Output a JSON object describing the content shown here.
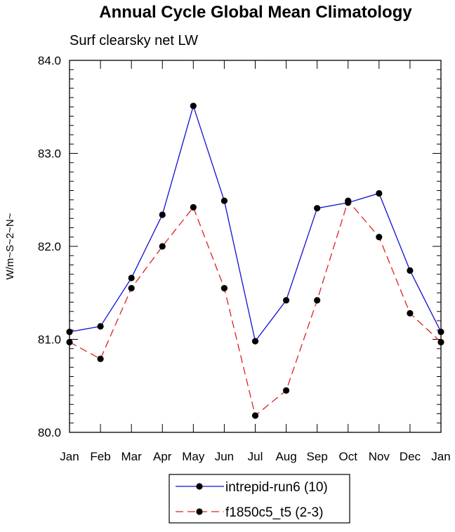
{
  "chart_data": {
    "type": "line",
    "title": "Annual Cycle Global Mean Climatology",
    "subtitle": "Surf clearsky net LW",
    "xlabel": "",
    "ylabel": "W/m~S~2~N~",
    "categories": [
      "Jan",
      "Feb",
      "Mar",
      "Apr",
      "May",
      "Jun",
      "Jul",
      "Aug",
      "Sep",
      "Oct",
      "Nov",
      "Dec",
      "Jan"
    ],
    "ylim": [
      80.0,
      84.0
    ],
    "yticks": [
      "80.0",
      "81.0",
      "82.0",
      "83.0",
      "84.0"
    ],
    "grid": false,
    "legend_position": "bottom-center",
    "series": [
      {
        "name": "intrepid-run6 (10)",
        "color": "#1010d0",
        "dash": "solid",
        "marker": "filled-circle",
        "values": [
          81.08,
          81.14,
          81.66,
          82.34,
          83.51,
          82.49,
          80.98,
          81.42,
          82.41,
          82.47,
          82.57,
          81.74,
          81.08
        ]
      },
      {
        "name": "f1850c5_t5 (2-3)",
        "color": "#e02020",
        "dash": "dashed",
        "marker": "filled-circle",
        "values": [
          80.97,
          80.79,
          81.55,
          82.0,
          82.42,
          81.55,
          80.18,
          80.45,
          81.42,
          82.49,
          82.1,
          81.28,
          80.97
        ]
      }
    ]
  }
}
